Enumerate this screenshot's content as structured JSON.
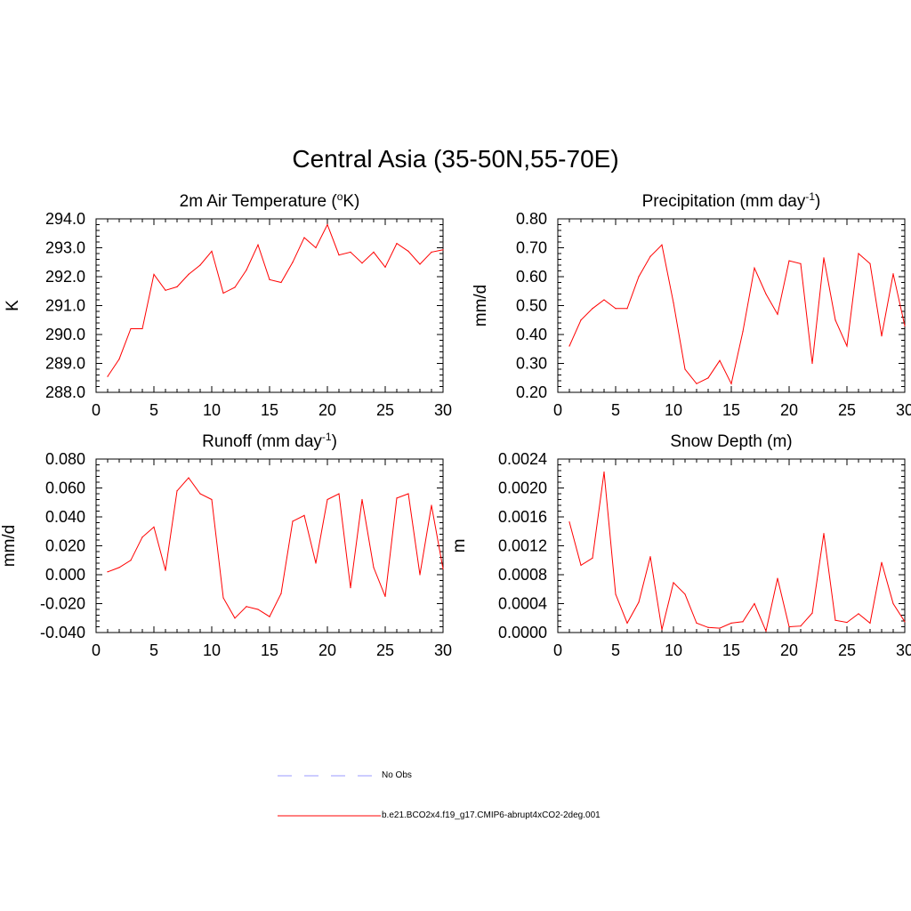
{
  "title": "Central Asia (35-50N,55-70E)",
  "colors": {
    "series": "#ff0000",
    "obs": "#9999ff",
    "axis": "#000000"
  },
  "legend": [
    {
      "label": "No Obs",
      "style": "dashed",
      "color": "#9999ff"
    },
    {
      "label": "b.e21.BCO2x4.f19_g17.CMIP6-abrupt4xCO2-2deg.001",
      "style": "solid",
      "color": "#ff0000"
    }
  ],
  "chart_data": [
    {
      "type": "line",
      "title": "2m Air Temperature (oK)",
      "title_parts": [
        "2m Air Temperature (",
        "o",
        "K)"
      ],
      "title_sup_index": 1,
      "ylabel": "K",
      "xlim": [
        0,
        30
      ],
      "ylim": [
        288.0,
        294.0
      ],
      "xticks": [
        "0",
        "5",
        "10",
        "15",
        "20",
        "25",
        "30"
      ],
      "yticks": [
        "288.0",
        "289.0",
        "290.0",
        "291.0",
        "292.0",
        "293.0",
        "294.0"
      ],
      "x": [
        1,
        2,
        3,
        4,
        5,
        6,
        7,
        8,
        9,
        10,
        11,
        12,
        13,
        14,
        15,
        16,
        17,
        18,
        19,
        20,
        21,
        22,
        23,
        24,
        25,
        26,
        27,
        28,
        29,
        30
      ],
      "values": [
        288.55,
        289.15,
        290.2,
        290.2,
        292.08,
        291.53,
        291.65,
        292.08,
        292.4,
        292.88,
        291.43,
        291.63,
        292.23,
        293.1,
        291.9,
        291.8,
        292.5,
        293.35,
        293.0,
        293.8,
        292.75,
        292.85,
        292.47,
        292.85,
        292.33,
        293.15,
        292.88,
        292.43,
        292.85,
        292.93
      ]
    },
    {
      "type": "line",
      "title": "Precipitation (mm day-1)",
      "title_parts": [
        "Precipitation (mm day",
        "-1",
        ")"
      ],
      "title_sup_index": 1,
      "ylabel": "mm/d",
      "xlim": [
        0,
        30
      ],
      "ylim": [
        0.2,
        0.8
      ],
      "xticks": [
        "0",
        "5",
        "10",
        "15",
        "20",
        "25",
        "30"
      ],
      "yticks": [
        "0.20",
        "0.30",
        "0.40",
        "0.50",
        "0.60",
        "0.70",
        "0.80"
      ],
      "x": [
        1,
        2,
        3,
        4,
        5,
        6,
        7,
        8,
        9,
        10,
        11,
        12,
        13,
        14,
        15,
        16,
        17,
        18,
        19,
        20,
        21,
        22,
        23,
        24,
        25,
        26,
        27,
        28,
        29,
        30
      ],
      "values": [
        0.36,
        0.45,
        0.49,
        0.52,
        0.49,
        0.49,
        0.6,
        0.67,
        0.71,
        0.51,
        0.28,
        0.23,
        0.25,
        0.31,
        0.23,
        0.41,
        0.63,
        0.54,
        0.47,
        0.655,
        0.645,
        0.3,
        0.665,
        0.45,
        0.36,
        0.68,
        0.645,
        0.395,
        0.61,
        0.43
      ]
    },
    {
      "type": "line",
      "title": "Runoff (mm day-1)",
      "title_parts": [
        "Runoff (mm day",
        "-1",
        ")"
      ],
      "title_sup_index": 1,
      "ylabel": "mm/d",
      "xlim": [
        0,
        30
      ],
      "ylim": [
        -0.04,
        0.08
      ],
      "xticks": [
        "0",
        "5",
        "10",
        "15",
        "20",
        "25",
        "30"
      ],
      "yticks": [
        "-0.040",
        "-0.020",
        "0.000",
        "0.020",
        "0.040",
        "0.060",
        "0.080"
      ],
      "x": [
        1,
        2,
        3,
        4,
        5,
        6,
        7,
        8,
        9,
        10,
        11,
        12,
        13,
        14,
        15,
        16,
        17,
        18,
        19,
        20,
        21,
        22,
        23,
        24,
        25,
        26,
        27,
        28,
        29,
        30
      ],
      "values": [
        0.002,
        0.005,
        0.01,
        0.026,
        0.033,
        0.003,
        0.058,
        0.067,
        0.056,
        0.052,
        -0.016,
        -0.03,
        -0.022,
        -0.024,
        -0.029,
        -0.013,
        0.037,
        0.041,
        0.008,
        0.052,
        0.056,
        -0.009,
        0.052,
        0.005,
        -0.015,
        0.053,
        0.056,
        0.0,
        0.048,
        0.004
      ]
    },
    {
      "type": "line",
      "title": "Snow Depth (m)",
      "title_parts": [
        "Snow Depth (m)"
      ],
      "title_sup_index": -1,
      "ylabel": "m",
      "xlim": [
        0,
        30
      ],
      "ylim": [
        0.0,
        0.0024
      ],
      "xticks": [
        "0",
        "5",
        "10",
        "15",
        "20",
        "25",
        "30"
      ],
      "yticks": [
        "0.0000",
        "0.0004",
        "0.0008",
        "0.0012",
        "0.0016",
        "0.0020",
        "0.0024"
      ],
      "x": [
        1,
        2,
        3,
        4,
        5,
        6,
        7,
        8,
        9,
        10,
        11,
        12,
        13,
        14,
        15,
        16,
        17,
        18,
        19,
        20,
        21,
        22,
        23,
        24,
        25,
        26,
        27,
        28,
        29,
        30
      ],
      "values": [
        0.00153,
        0.00093,
        0.00103,
        0.00222,
        0.00053,
        0.00013,
        0.00042,
        0.00105,
        4e-05,
        0.00069,
        0.00053,
        0.00013,
        7e-05,
        6e-05,
        0.00013,
        0.00015,
        0.0004,
        2e-05,
        0.00075,
        8e-05,
        9e-05,
        0.00027,
        0.00137,
        0.00017,
        0.00014,
        0.00026,
        0.00013,
        0.00097,
        0.0004,
        0.00015
      ]
    }
  ]
}
